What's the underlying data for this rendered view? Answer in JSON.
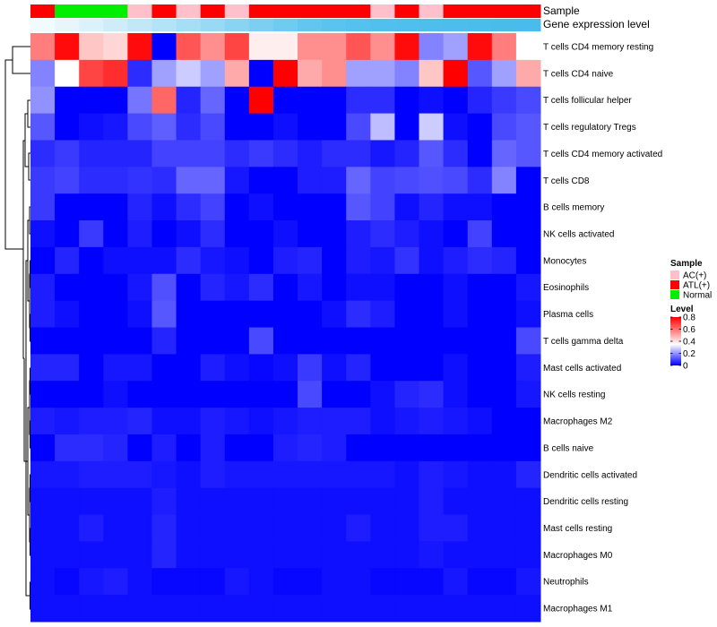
{
  "chart_data": {
    "type": "heatmap",
    "annotation_labels": {
      "sample": "Sample",
      "expression": "Gene expression level"
    },
    "sample_groups": [
      "ATL(+)",
      "Normal",
      "Normal",
      "Normal",
      "AC(+)",
      "ATL(+)",
      "AC(+)",
      "ATL(+)",
      "AC(+)",
      "ATL(+)",
      "ATL(+)",
      "ATL(+)",
      "ATL(+)",
      "ATL(+)",
      "AC(+)",
      "ATL(+)",
      "AC(+)",
      "ATL(+)",
      "ATL(+)",
      "ATL(+)",
      "ATL(+)"
    ],
    "expression_level": [
      0.05,
      0.08,
      0.1,
      0.12,
      0.15,
      0.18,
      0.21,
      0.24,
      0.27,
      0.3,
      0.34,
      0.38,
      0.42,
      0.46,
      0.5,
      0.54,
      0.58,
      0.62,
      0.66,
      0.7,
      0.74
    ],
    "expression_colors": [
      "#f1fafd",
      "#e8f6fb",
      "#dcf2fa",
      "#cfedf8",
      "#c1e8f7",
      "#b4e3f6",
      "#a6def5",
      "#98d9f4",
      "#8ad4f3",
      "#7dcff2",
      "#70cbf1",
      "#62c6f0",
      "#5ac3ef",
      "#55c1ee",
      "#52c0ee",
      "#50bfed",
      "#4ebeed",
      "#4cbdec",
      "#4bbdec",
      "#4abcec",
      "#49bbec"
    ],
    "rows": [
      "T cells CD4 memory resting",
      "T cells CD4 naive",
      "T cells follicular helper",
      "T cells regulatory  Tregs",
      "T cells CD4 memory activated",
      "T cells CD8",
      "B cells memory",
      "NK cells activated",
      "Monocytes",
      "Eosinophils",
      "Plasma cells",
      "T cells gamma delta",
      "Mast cells activated",
      "NK cells resting",
      "Macrophages M2",
      "B cells naive",
      "Dendritic cells activated",
      "Dendritic cells resting",
      "Mast cells resting",
      "Macrophages M0",
      "Neutrophils",
      "Macrophages M1"
    ],
    "values": [
      [
        0.58,
        0.78,
        0.45,
        0.42,
        0.78,
        0.0,
        0.65,
        0.55,
        0.68,
        0.38,
        0.38,
        0.55,
        0.55,
        0.65,
        0.55,
        0.78,
        0.18,
        0.22,
        0.78,
        0.58,
        0.35
      ],
      [
        0.18,
        0.35,
        0.68,
        0.72,
        0.06,
        0.22,
        0.28,
        0.22,
        0.5,
        0.0,
        0.8,
        0.5,
        0.55,
        0.22,
        0.22,
        0.18,
        0.45,
        0.8,
        0.12,
        0.22,
        0.5
      ],
      [
        0.2,
        0.0,
        0.0,
        0.0,
        0.16,
        0.62,
        0.05,
        0.14,
        0.0,
        0.8,
        0.0,
        0.0,
        0.0,
        0.06,
        0.06,
        0.0,
        0.02,
        0.0,
        0.05,
        0.08,
        0.1
      ],
      [
        0.12,
        0.0,
        0.02,
        0.03,
        0.1,
        0.13,
        0.06,
        0.1,
        0.0,
        0.0,
        0.02,
        0.0,
        0.0,
        0.1,
        0.26,
        0.0,
        0.28,
        0.02,
        0.0,
        0.1,
        0.12
      ],
      [
        0.06,
        0.08,
        0.05,
        0.05,
        0.05,
        0.09,
        0.09,
        0.09,
        0.06,
        0.08,
        0.06,
        0.04,
        0.06,
        0.06,
        0.03,
        0.05,
        0.12,
        0.06,
        0.0,
        0.14,
        0.12
      ],
      [
        0.08,
        0.09,
        0.06,
        0.06,
        0.07,
        0.06,
        0.14,
        0.14,
        0.03,
        0.0,
        0.0,
        0.04,
        0.04,
        0.14,
        0.09,
        0.1,
        0.11,
        0.1,
        0.06,
        0.18,
        0.0
      ],
      [
        0.08,
        0.0,
        0.0,
        0.0,
        0.05,
        0.02,
        0.06,
        0.09,
        0.0,
        0.02,
        0.0,
        0.0,
        0.0,
        0.12,
        0.09,
        0.02,
        0.05,
        0.02,
        0.02,
        0.0,
        0.0
      ],
      [
        0.02,
        0.0,
        0.08,
        0.0,
        0.04,
        0.0,
        0.02,
        0.06,
        0.0,
        0.0,
        0.02,
        0.0,
        0.0,
        0.04,
        0.06,
        0.04,
        0.02,
        0.0,
        0.09,
        0.0,
        0.0
      ],
      [
        0.0,
        0.05,
        0.0,
        0.02,
        0.02,
        0.02,
        0.06,
        0.03,
        0.02,
        0.0,
        0.04,
        0.05,
        0.0,
        0.04,
        0.03,
        0.07,
        0.02,
        0.04,
        0.06,
        0.05,
        0.0
      ],
      [
        0.04,
        0.0,
        0.0,
        0.0,
        0.03,
        0.11,
        0.0,
        0.05,
        0.03,
        0.06,
        0.0,
        0.03,
        0.0,
        0.02,
        0.02,
        0.0,
        0.0,
        0.02,
        0.0,
        0.0,
        0.03
      ],
      [
        0.04,
        0.02,
        0.0,
        0.0,
        0.02,
        0.12,
        0.0,
        0.0,
        0.0,
        0.0,
        0.0,
        0.0,
        0.02,
        0.06,
        0.04,
        0.0,
        0.0,
        0.02,
        0.0,
        0.0,
        0.02
      ],
      [
        0.0,
        0.0,
        0.0,
        0.0,
        0.0,
        0.05,
        0.0,
        0.0,
        0.0,
        0.1,
        0.0,
        0.0,
        0.0,
        0.0,
        0.0,
        0.0,
        0.0,
        0.0,
        0.0,
        0.0,
        0.1
      ],
      [
        0.05,
        0.05,
        0.0,
        0.03,
        0.03,
        0.0,
        0.0,
        0.04,
        0.02,
        0.01,
        0.02,
        0.08,
        0.02,
        0.05,
        0.0,
        0.0,
        0.0,
        0.02,
        0.0,
        0.0,
        0.04
      ],
      [
        0.0,
        0.0,
        0.0,
        0.02,
        0.0,
        0.0,
        0.0,
        0.0,
        0.0,
        0.0,
        0.0,
        0.1,
        0.0,
        0.0,
        0.02,
        0.05,
        0.06,
        0.02,
        0.0,
        0.0,
        0.03
      ],
      [
        0.04,
        0.03,
        0.04,
        0.04,
        0.05,
        0.02,
        0.02,
        0.04,
        0.03,
        0.02,
        0.03,
        0.04,
        0.04,
        0.04,
        0.02,
        0.03,
        0.04,
        0.03,
        0.02,
        0.0,
        0.0
      ],
      [
        0.0,
        0.06,
        0.06,
        0.05,
        0.0,
        0.04,
        0.0,
        0.04,
        0.0,
        0.0,
        0.04,
        0.05,
        0.04,
        0.0,
        0.0,
        0.0,
        0.0,
        0.0,
        0.0,
        0.0,
        0.0
      ],
      [
        0.03,
        0.03,
        0.04,
        0.04,
        0.04,
        0.03,
        0.02,
        0.04,
        0.03,
        0.03,
        0.03,
        0.03,
        0.03,
        0.03,
        0.03,
        0.02,
        0.04,
        0.03,
        0.02,
        0.02,
        0.05
      ],
      [
        0.02,
        0.02,
        0.02,
        0.02,
        0.02,
        0.04,
        0.02,
        0.02,
        0.02,
        0.02,
        0.02,
        0.02,
        0.02,
        0.02,
        0.02,
        0.02,
        0.04,
        0.02,
        0.02,
        0.02,
        0.02
      ],
      [
        0.02,
        0.02,
        0.04,
        0.02,
        0.02,
        0.05,
        0.02,
        0.02,
        0.02,
        0.02,
        0.02,
        0.02,
        0.02,
        0.04,
        0.02,
        0.02,
        0.04,
        0.04,
        0.02,
        0.02,
        0.02
      ],
      [
        0.02,
        0.02,
        0.02,
        0.02,
        0.02,
        0.05,
        0.02,
        0.02,
        0.02,
        0.02,
        0.02,
        0.02,
        0.02,
        0.02,
        0.02,
        0.02,
        0.03,
        0.02,
        0.02,
        0.02,
        0.02
      ],
      [
        0.02,
        0.01,
        0.03,
        0.04,
        0.02,
        0.01,
        0.01,
        0.01,
        0.03,
        0.02,
        0.01,
        0.01,
        0.02,
        0.02,
        0.01,
        0.01,
        0.01,
        0.03,
        0.01,
        0.01,
        0.03
      ],
      [
        0.02,
        0.02,
        0.02,
        0.02,
        0.02,
        0.02,
        0.02,
        0.02,
        0.02,
        0.02,
        0.02,
        0.02,
        0.02,
        0.02,
        0.02,
        0.02,
        0.02,
        0.02,
        0.02,
        0.02,
        0.02
      ]
    ],
    "color_scale": {
      "min": 0,
      "max": 0.8,
      "low": "#0000ff",
      "mid": "#ffffff",
      "high": "#ff0000",
      "midpoint": 0.35
    },
    "legend_sample": {
      "title": "Sample",
      "entries": [
        {
          "label": "AC(+)",
          "color": "#ffc0cb"
        },
        {
          "label": "ATL(+)",
          "color": "#ff0000"
        },
        {
          "label": "Normal",
          "color": "#00ee00"
        }
      ]
    },
    "legend_level": {
      "title": "Level",
      "ticks": [
        "0.8",
        "0.6",
        "0.4",
        "0.2",
        "0"
      ]
    },
    "group_colors": {
      "AC(+)": "#ffc0cb",
      "ATL(+)": "#ff0000",
      "Normal": "#00ee00"
    }
  }
}
